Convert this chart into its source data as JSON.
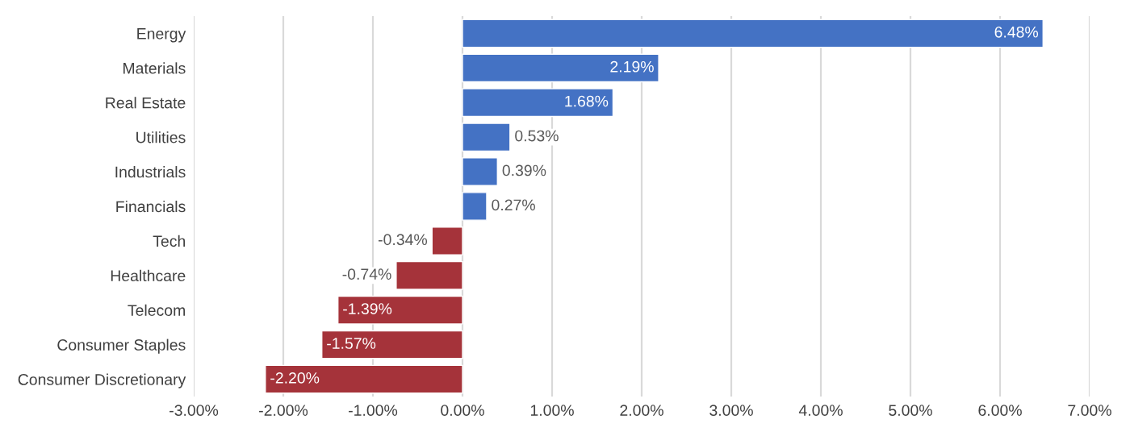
{
  "chart_data": {
    "type": "bar",
    "orientation": "horizontal",
    "categories": [
      "Energy",
      "Materials",
      "Real Estate",
      "Utilities",
      "Industrials",
      "Financials",
      "Tech",
      "Healthcare",
      "Telecom",
      "Consumer Staples",
      "Consumer Discretionary"
    ],
    "values": [
      6.48,
      2.19,
      1.68,
      0.53,
      0.39,
      0.27,
      -0.34,
      -0.74,
      -1.39,
      -1.57,
      -2.2
    ],
    "colors": [
      "#4472c4",
      "#4472c4",
      "#4472c4",
      "#4472c4",
      "#4472c4",
      "#4472c4",
      "#a5333a",
      "#a5333a",
      "#a5333a",
      "#a5333a",
      "#a5333a"
    ],
    "value_labels": [
      "6.48%",
      "2.19%",
      "1.68%",
      "0.53%",
      "0.39%",
      "0.27%",
      "-0.34%",
      "-0.74%",
      "-1.39%",
      "-1.57%",
      "-2.20%"
    ],
    "xlim": [
      -3,
      7
    ],
    "xticks": [
      {
        "value": -3,
        "label": "-3.00%"
      },
      {
        "value": -2,
        "label": "-2.00%"
      },
      {
        "value": -1,
        "label": "-1.00%"
      },
      {
        "value": 0,
        "label": "0.00%"
      },
      {
        "value": 1,
        "label": "1.00%"
      },
      {
        "value": 2,
        "label": "2.00%"
      },
      {
        "value": 3,
        "label": "3.00%"
      },
      {
        "value": 4,
        "label": "4.00%"
      },
      {
        "value": 5,
        "label": "5.00%"
      },
      {
        "value": 6,
        "label": "6.00%"
      },
      {
        "value": 7,
        "label": "7.00%"
      }
    ],
    "grid": "x"
  }
}
